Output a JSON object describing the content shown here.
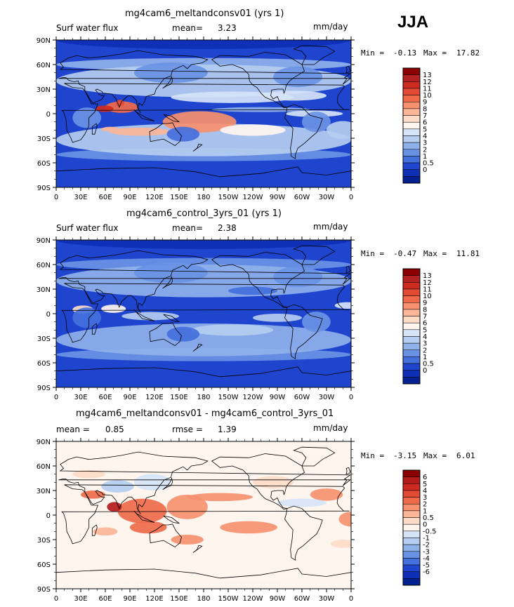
{
  "season": "JJA",
  "units": "mm/day",
  "panels": [
    {
      "title": "mg4cam6_meltandconsv01 (yrs 1)",
      "left_label": "Surf water flux",
      "stat1_label": "mean=",
      "stat1_value": "3.23",
      "stat2_label": "",
      "stat2_value": "",
      "min_label": "Min =",
      "min_value": "-0.13",
      "max_label": "Max =",
      "max_value": "17.82"
    },
    {
      "title": "mg4cam6_control_3yrs_01 (yrs 1)",
      "left_label": "Surf water flux",
      "stat1_label": "mean=",
      "stat1_value": "2.38",
      "stat2_label": "",
      "stat2_value": "",
      "min_label": "Min =",
      "min_value": "-0.47",
      "max_label": "Max =",
      "max_value": "11.81"
    },
    {
      "title": "mg4cam6_meltandconsv01 - mg4cam6_control_3yrs_01",
      "left_label": "",
      "stat1_label": "mean =",
      "stat1_value": "0.85",
      "stat2_label": "rmse =",
      "stat2_value": "1.39",
      "min_label": "Min =",
      "min_value": "-3.15",
      "max_label": "Max =",
      "max_value": "6.01"
    }
  ],
  "chart_data": [
    {
      "type": "heatmap",
      "title": "mg4cam6_meltandconsv01 (yrs 1)",
      "variable": "Surf water flux",
      "units": "mm/day",
      "mean": 3.23,
      "min": -0.13,
      "max": 17.82,
      "x_ticks": [
        "0",
        "30E",
        "60E",
        "90E",
        "120E",
        "150E",
        "180",
        "150W",
        "120W",
        "90W",
        "60W",
        "30W",
        "0"
      ],
      "y_ticks": [
        "90N",
        "60N",
        "30N",
        "0",
        "30S",
        "60S",
        "90S"
      ],
      "colorbar_levels": [
        "13",
        "12",
        "11",
        "10",
        "9",
        "8",
        "7",
        "6",
        "5",
        "4",
        "3",
        "2",
        "1",
        "0.5",
        "0"
      ],
      "colorbar_colors": [
        "#8b0000",
        "#b22222",
        "#cd2b1f",
        "#e34a33",
        "#f06a4a",
        "#f7906e",
        "#fbb597",
        "#fddbc7",
        "#fff5ef",
        "#d6e4f8",
        "#b5cdf0",
        "#8fb1ea",
        "#6a92e4",
        "#4470dc",
        "#1f45cf",
        "#0d2fb5",
        "#02208f"
      ]
    },
    {
      "type": "heatmap",
      "title": "mg4cam6_control_3yrs_01 (yrs 1)",
      "variable": "Surf water flux",
      "units": "mm/day",
      "mean": 2.38,
      "min": -0.47,
      "max": 11.81,
      "x_ticks": [
        "0",
        "30E",
        "60E",
        "90E",
        "120E",
        "150E",
        "180",
        "150W",
        "120W",
        "90W",
        "60W",
        "30W",
        "0"
      ],
      "y_ticks": [
        "90N",
        "60N",
        "30N",
        "0",
        "30S",
        "60S",
        "90S"
      ],
      "colorbar_levels": [
        "13",
        "12",
        "11",
        "10",
        "9",
        "8",
        "7",
        "6",
        "5",
        "4",
        "3",
        "2",
        "1",
        "0.5",
        "0"
      ],
      "colorbar_colors": [
        "#8b0000",
        "#b22222",
        "#cd2b1f",
        "#e34a33",
        "#f06a4a",
        "#f7906e",
        "#fbb597",
        "#fddbc7",
        "#fff5ef",
        "#d6e4f8",
        "#b5cdf0",
        "#8fb1ea",
        "#6a92e4",
        "#4470dc",
        "#1f45cf",
        "#0d2fb5",
        "#02208f"
      ]
    },
    {
      "type": "heatmap",
      "title": "mg4cam6_meltandconsv01 - mg4cam6_control_3yrs_01",
      "units": "mm/day",
      "mean": 0.85,
      "rmse": 1.39,
      "min": -3.15,
      "max": 6.01,
      "x_ticks": [
        "0",
        "30E",
        "60E",
        "90E",
        "120E",
        "150E",
        "180",
        "150W",
        "120W",
        "90W",
        "60W",
        "30W",
        "0"
      ],
      "y_ticks": [
        "90N",
        "60N",
        "30N",
        "0",
        "30S",
        "60S",
        "90S"
      ],
      "colorbar_levels": [
        "6",
        "5",
        "4",
        "3",
        "2",
        "1",
        "0.5",
        "0",
        "-0.5",
        "-1",
        "-2",
        "-3",
        "-4",
        "-5",
        "-6"
      ],
      "colorbar_colors": [
        "#8b0000",
        "#b31b1b",
        "#cf2a1f",
        "#e34a33",
        "#ef6a4b",
        "#f5916f",
        "#fbb597",
        "#fddbc7",
        "#fff5ef",
        "#d6e4f8",
        "#b5cdf0",
        "#8fb1ea",
        "#6a92e4",
        "#4470dc",
        "#1f45cf",
        "#0d2fb5",
        "#02208f"
      ]
    }
  ]
}
